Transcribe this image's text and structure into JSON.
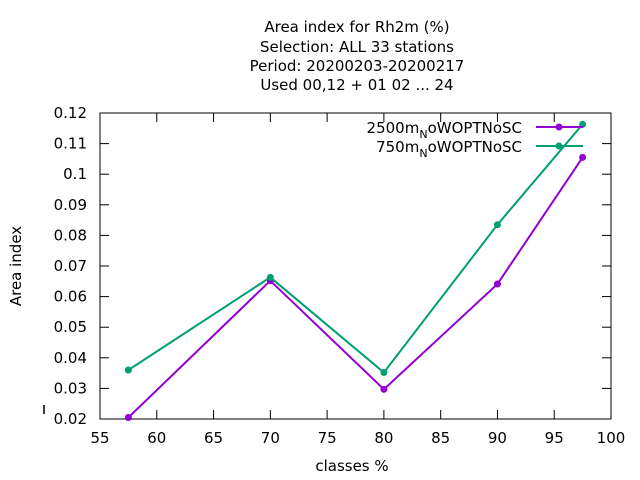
{
  "chart_data": {
    "type": "line",
    "title_lines": [
      "Area index  for Rh2m (%)",
      "Selection: ALL     33 stations",
      "Period: 20200203-20200217",
      "Used  00,12  + 01 02 ... 24"
    ],
    "xlabel": "classes %",
    "ylabel": "Area index",
    "xlim": [
      55,
      100
    ],
    "ylim": [
      0.02,
      0.12
    ],
    "x_ticks": [
      "55",
      "60",
      "65",
      "70",
      "75",
      "80",
      "85",
      "90",
      "95",
      "100"
    ],
    "y_ticks": [
      "0.02",
      "0.03",
      "0.04",
      "0.05",
      "0.06",
      "0.07",
      "0.08",
      "0.09",
      "0.1",
      "0.11",
      "0.12"
    ],
    "grid": false,
    "legend_position": "top-right",
    "series": [
      {
        "legend_main": "2500m",
        "legend_sub": "N",
        "legend_rest": "oWOPTNoSC",
        "color": "#9400d3",
        "x": [
          57.5,
          70,
          80,
          90,
          97.5
        ],
        "y": [
          0.0205,
          0.0652,
          0.0297,
          0.0641,
          0.1055
        ]
      },
      {
        "legend_main": "750m",
        "legend_sub": "N",
        "legend_rest": "oWOPTNoSC",
        "color": "#009e73",
        "x": [
          57.5,
          70,
          80,
          90,
          97.5
        ],
        "y": [
          0.036,
          0.0663,
          0.0352,
          0.0835,
          0.1163
        ]
      }
    ]
  }
}
